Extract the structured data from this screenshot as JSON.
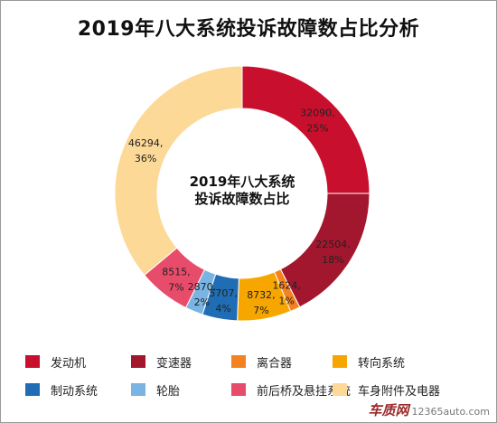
{
  "header": {
    "title": "2019年八大系统投诉故障数占比分析"
  },
  "chart_data": {
    "type": "pie",
    "donut": true,
    "title": "2019年八大系统投诉故障数占比分析",
    "center_label_lines": [
      "2019年八大系统",
      "投诉故障数占比"
    ],
    "legend_position": "bottom",
    "slices": [
      {
        "name": "发动机",
        "value": 32090,
        "label_value": "32090,",
        "label_pct": "25%",
        "color": "#c8102e",
        "show_label": true
      },
      {
        "name": "变速器",
        "value": 22504,
        "label_value": "22504,",
        "label_pct": "18%",
        "color": "#a3172e",
        "show_label": true
      },
      {
        "name": "离合器",
        "value": 1624,
        "label_value": "1624,",
        "label_pct": "1%",
        "color": "#f58220",
        "show_label": true
      },
      {
        "name": "转向系统",
        "value": 8732,
        "label_value": "8732,",
        "label_pct": "7%",
        "color": "#f7a600",
        "show_label": true
      },
      {
        "name": "制动系统",
        "value": 5707,
        "label_value": "5707,",
        "label_pct": "4%",
        "color": "#1f6eb5",
        "show_label": true
      },
      {
        "name": "轮胎",
        "value": 2870,
        "label_value": "2870,",
        "label_pct": "2%",
        "color": "#79b4e3",
        "show_label": true
      },
      {
        "name": "前后桥及悬挂系统",
        "value": 8515,
        "label_value": "8515,",
        "label_pct": "7%",
        "color": "#e84c6b",
        "show_label": true
      },
      {
        "name": "车身附件及电器",
        "value": 46294,
        "label_value": "46294,",
        "label_pct": "36%",
        "color": "#fcd996",
        "show_label": true
      }
    ]
  },
  "watermark": {
    "brand": "车质网",
    "url": "12365auto.com"
  }
}
